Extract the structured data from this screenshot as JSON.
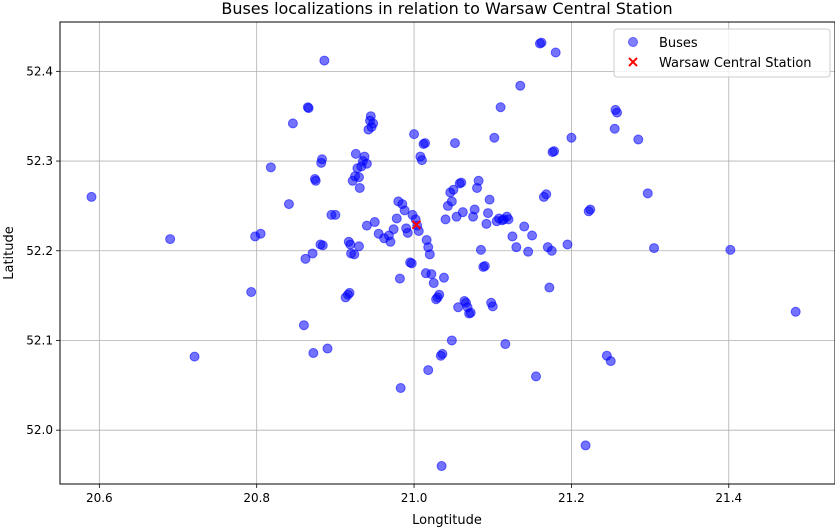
{
  "chart_data": {
    "type": "scatter",
    "title": "Buses localizations in relation to Warsaw Central Station",
    "xlabel": "Longtitude",
    "ylabel": "Latitude",
    "xlim": [
      20.55,
      21.535
    ],
    "ylim": [
      51.94,
      52.455
    ],
    "xticks": [
      20.6,
      20.8,
      21.0,
      21.2,
      21.4
    ],
    "yticks": [
      52.0,
      52.1,
      52.2,
      52.3,
      52.4
    ],
    "xtick_labels": [
      "20.6",
      "20.8",
      "21.0",
      "21.2",
      "21.4"
    ],
    "ytick_labels": [
      "52.0",
      "52.1",
      "52.2",
      "52.3",
      "52.4"
    ],
    "grid": true,
    "legend_position": "top-right",
    "series": [
      {
        "name": "Buses",
        "marker": "circle",
        "color": "#0000ff",
        "points": [
          [
            20.59,
            52.26
          ],
          [
            20.69,
            52.213
          ],
          [
            20.721,
            52.082
          ],
          [
            20.793,
            52.154
          ],
          [
            20.798,
            52.216
          ],
          [
            20.805,
            52.219
          ],
          [
            20.818,
            52.293
          ],
          [
            20.841,
            52.252
          ],
          [
            20.846,
            52.342
          ],
          [
            20.86,
            52.117
          ],
          [
            20.862,
            52.191
          ],
          [
            20.865,
            52.36
          ],
          [
            20.866,
            52.359
          ],
          [
            20.871,
            52.197
          ],
          [
            20.872,
            52.086
          ],
          [
            20.874,
            52.28
          ],
          [
            20.875,
            52.278
          ],
          [
            20.882,
            52.298
          ],
          [
            20.883,
            52.302
          ],
          [
            20.881,
            52.207
          ],
          [
            20.884,
            52.206
          ],
          [
            20.886,
            52.412
          ],
          [
            20.89,
            52.091
          ],
          [
            20.895,
            52.24
          ],
          [
            20.9,
            52.24
          ],
          [
            20.913,
            52.148
          ],
          [
            20.916,
            52.151
          ],
          [
            20.918,
            52.153
          ],
          [
            20.917,
            52.21
          ],
          [
            20.919,
            52.207
          ],
          [
            20.92,
            52.197
          ],
          [
            20.924,
            52.196
          ],
          [
            20.922,
            52.278
          ],
          [
            20.925,
            52.283
          ],
          [
            20.926,
            52.308
          ],
          [
            20.928,
            52.292
          ],
          [
            20.93,
            52.282
          ],
          [
            20.931,
            52.27
          ],
          [
            20.933,
            52.294
          ],
          [
            20.935,
            52.3
          ],
          [
            20.937,
            52.305
          ],
          [
            20.94,
            52.297
          ],
          [
            20.942,
            52.335
          ],
          [
            20.944,
            52.345
          ],
          [
            20.945,
            52.35
          ],
          [
            20.946,
            52.338
          ],
          [
            20.948,
            52.342
          ],
          [
            20.93,
            52.205
          ],
          [
            20.94,
            52.228
          ],
          [
            20.95,
            52.232
          ],
          [
            20.955,
            52.219
          ],
          [
            20.962,
            52.214
          ],
          [
            20.968,
            52.217
          ],
          [
            20.97,
            52.21
          ],
          [
            20.974,
            52.224
          ],
          [
            20.978,
            52.236
          ],
          [
            20.98,
            52.255
          ],
          [
            20.982,
            52.169
          ],
          [
            20.983,
            52.047
          ],
          [
            20.985,
            52.252
          ],
          [
            20.988,
            52.245
          ],
          [
            20.99,
            52.225
          ],
          [
            20.992,
            52.22
          ],
          [
            20.995,
            52.187
          ],
          [
            20.997,
            52.186
          ],
          [
            20.998,
            52.24
          ],
          [
            21.0,
            52.33
          ],
          [
            21.002,
            52.235
          ],
          [
            21.004,
            52.228
          ],
          [
            21.006,
            52.222
          ],
          [
            21.008,
            52.305
          ],
          [
            21.01,
            52.301
          ],
          [
            21.012,
            52.319
          ],
          [
            21.014,
            52.32
          ],
          [
            21.016,
            52.212
          ],
          [
            21.018,
            52.204
          ],
          [
            21.02,
            52.196
          ],
          [
            21.015,
            52.175
          ],
          [
            21.022,
            52.174
          ],
          [
            21.018,
            52.067
          ],
          [
            21.025,
            52.164
          ],
          [
            21.028,
            52.146
          ],
          [
            21.03,
            52.148
          ],
          [
            21.032,
            52.151
          ],
          [
            21.034,
            52.083
          ],
          [
            21.036,
            52.085
          ],
          [
            21.035,
            51.96
          ],
          [
            21.038,
            52.17
          ],
          [
            21.04,
            52.235
          ],
          [
            21.043,
            52.25
          ],
          [
            21.046,
            52.265
          ],
          [
            21.048,
            52.255
          ],
          [
            21.05,
            52.268
          ],
          [
            21.052,
            52.32
          ],
          [
            21.054,
            52.238
          ],
          [
            21.056,
            52.137
          ],
          [
            21.058,
            52.275
          ],
          [
            21.06,
            52.276
          ],
          [
            21.062,
            52.243
          ],
          [
            21.064,
            52.144
          ],
          [
            21.066,
            52.142
          ],
          [
            21.068,
            52.137
          ],
          [
            21.07,
            52.13
          ],
          [
            21.072,
            52.131
          ],
          [
            21.048,
            52.1
          ],
          [
            21.075,
            52.238
          ],
          [
            21.077,
            52.246
          ],
          [
            21.08,
            52.27
          ],
          [
            21.082,
            52.278
          ],
          [
            21.085,
            52.201
          ],
          [
            21.088,
            52.182
          ],
          [
            21.09,
            52.183
          ],
          [
            21.092,
            52.23
          ],
          [
            21.094,
            52.242
          ],
          [
            21.096,
            52.257
          ],
          [
            21.098,
            52.142
          ],
          [
            21.1,
            52.138
          ],
          [
            21.102,
            52.326
          ],
          [
            21.105,
            52.233
          ],
          [
            21.108,
            52.236
          ],
          [
            21.11,
            52.36
          ],
          [
            21.112,
            52.234
          ],
          [
            21.114,
            52.235
          ],
          [
            21.116,
            52.096
          ],
          [
            21.118,
            52.238
          ],
          [
            21.12,
            52.235
          ],
          [
            21.125,
            52.216
          ],
          [
            21.13,
            52.204
          ],
          [
            21.135,
            52.384
          ],
          [
            21.14,
            52.227
          ],
          [
            21.145,
            52.199
          ],
          [
            21.15,
            52.217
          ],
          [
            21.155,
            52.06
          ],
          [
            21.16,
            52.431
          ],
          [
            21.162,
            52.432
          ],
          [
            21.165,
            52.26
          ],
          [
            21.168,
            52.263
          ],
          [
            21.17,
            52.204
          ],
          [
            21.172,
            52.159
          ],
          [
            21.175,
            52.2
          ],
          [
            21.176,
            52.31
          ],
          [
            21.178,
            52.311
          ],
          [
            21.18,
            52.421
          ],
          [
            21.195,
            52.207
          ],
          [
            21.2,
            52.326
          ],
          [
            21.218,
            51.983
          ],
          [
            21.222,
            52.244
          ],
          [
            21.224,
            52.246
          ],
          [
            21.245,
            52.083
          ],
          [
            21.25,
            52.077
          ],
          [
            21.255,
            52.336
          ],
          [
            21.256,
            52.357
          ],
          [
            21.258,
            52.354
          ],
          [
            21.285,
            52.324
          ],
          [
            21.297,
            52.264
          ],
          [
            21.305,
            52.203
          ],
          [
            21.402,
            52.201
          ],
          [
            21.485,
            52.132
          ]
        ]
      },
      {
        "name": "Warsaw Central Station",
        "marker": "x",
        "color": "#ff0000",
        "points": [
          [
            21.003,
            52.229
          ]
        ]
      }
    ]
  }
}
